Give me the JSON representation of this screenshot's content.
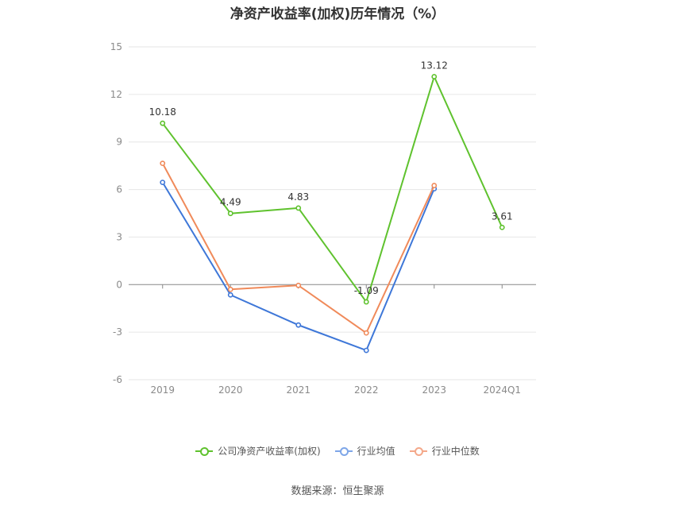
{
  "chart_data": {
    "type": "line",
    "title": "净资产收益率(加权)历年情况（%）",
    "categories": [
      "2019",
      "2020",
      "2021",
      "2022",
      "2023",
      "2024Q1"
    ],
    "ylim": [
      -6,
      15
    ],
    "yticks": [
      15,
      12,
      9,
      6,
      3,
      0,
      -3,
      -6
    ],
    "grid": true,
    "legend_position": "bottom",
    "series": [
      {
        "name": "公司净资产收益率(加权)",
        "color": "#5fc22e",
        "values": [
          10.18,
          4.49,
          4.83,
          -1.09,
          13.12,
          3.61
        ],
        "labels": [
          "10.18",
          "4.49",
          "4.83",
          "-1.09",
          "13.12",
          "3.61"
        ]
      },
      {
        "name": "行业均值",
        "color": "#3e77d8",
        "values": [
          6.45,
          -0.65,
          -2.55,
          -4.15,
          6.05,
          null
        ]
      },
      {
        "name": "行业中位数",
        "color": "#f08a5a",
        "values": [
          7.65,
          -0.3,
          -0.05,
          -3.05,
          6.25,
          null
        ]
      }
    ]
  },
  "legend": {
    "items": [
      "公司净资产收益率(加权)",
      "行业均值",
      "行业中位数"
    ],
    "colors": [
      "#5fc22e",
      "#7ea6e8",
      "#f4a88a"
    ]
  },
  "footer": {
    "source": "数据来源：恒生聚源"
  }
}
